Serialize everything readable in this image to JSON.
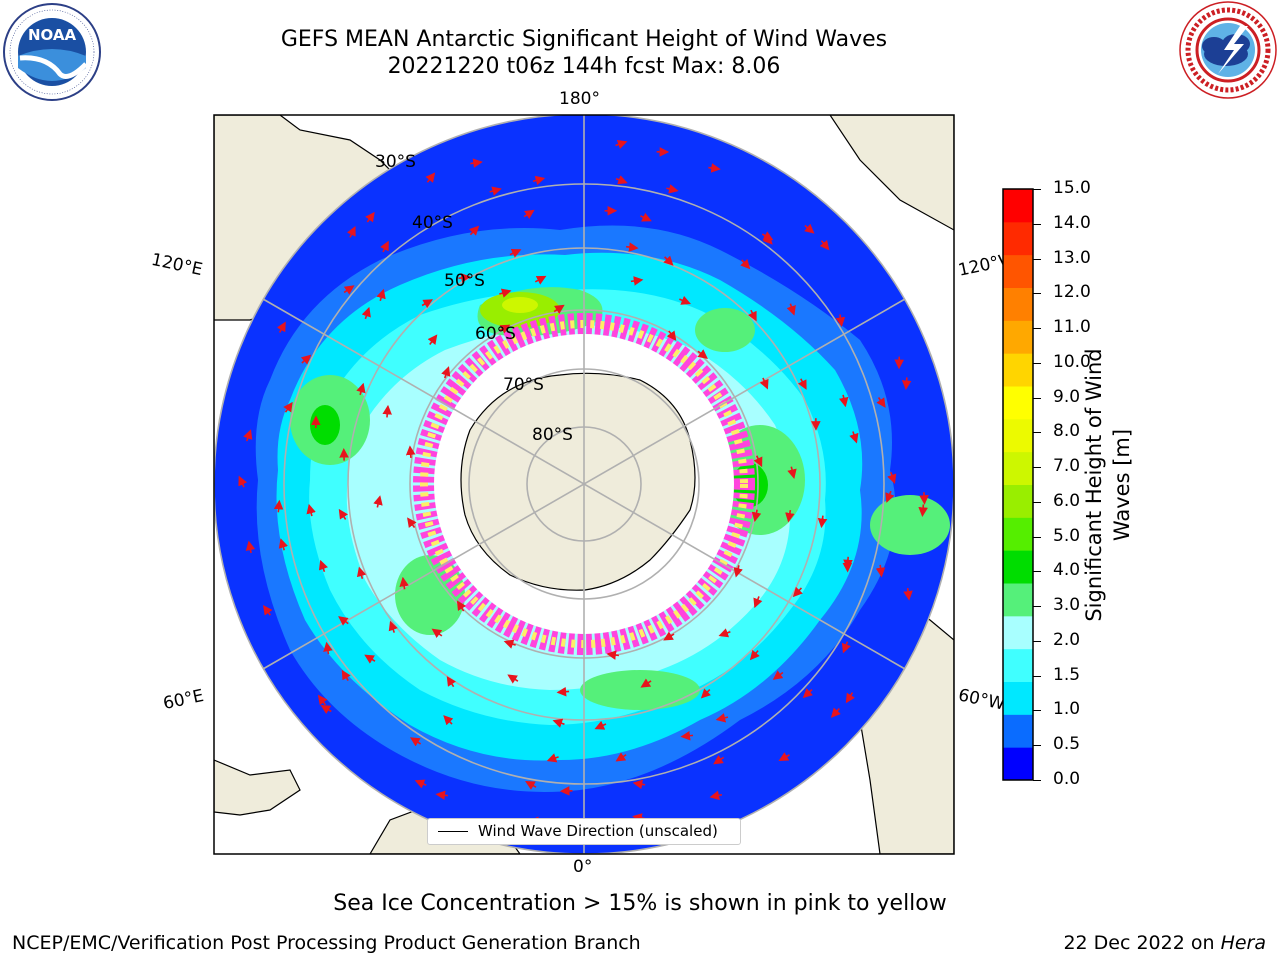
{
  "header": {
    "title_line1": "GEFS MEAN Antarctic Significant Height of Wind Waves",
    "title_line2": "20221220 t06z 144h fcst   Max: 8.06"
  },
  "logos": {
    "left": {
      "name": "noaa-logo",
      "text": "NOAA",
      "ring_text": "NATIONAL OCEANIC AND ATMOSPHERIC ADMINISTRATION · U.S. DEPARTMENT OF COMMERCE"
    },
    "right": {
      "name": "nws-logo",
      "ring_text": "NATIONAL WEATHER SERVICE"
    }
  },
  "map": {
    "longitude_labels": [
      "180°",
      "120°E",
      "120°W",
      "60°E",
      "60°W",
      "0°"
    ],
    "latitude_labels": [
      "30°S",
      "40°S",
      "50°S",
      "60°S",
      "70°S",
      "80°S"
    ],
    "legend_label": "Wind Wave Direction (unscaled)",
    "colors": {
      "land": "#efecdb",
      "ice_pink": "#ff44dd",
      "ice_yellow": "#ffee66",
      "arrow": "#e8141d"
    }
  },
  "colorbar": {
    "label": "Significant Height of Wind Waves [m]",
    "label_line1": "Significant Height of Wind",
    "label_line2": "Waves [m]",
    "ticks": [
      "15.0",
      "14.0",
      "13.0",
      "12.0",
      "11.0",
      "10.0",
      "9.0",
      "8.0",
      "7.0",
      "6.0",
      "5.0",
      "4.0",
      "3.0",
      "2.0",
      "1.5",
      "1.0",
      "0.5",
      "0.0"
    ],
    "colors_bottom_to_top": [
      "#0000ff",
      "#0a6cff",
      "#00e8ff",
      "#40ffff",
      "#a8ffff",
      "#55f07a",
      "#00dd00",
      "#55ee00",
      "#99ee00",
      "#cdf700",
      "#ecfa00",
      "#ffff00",
      "#ffd500",
      "#ffa800",
      "#ff8000",
      "#ff5500",
      "#ff2a00",
      "#ff0000"
    ]
  },
  "footer": {
    "note": "Sea Ice Concentration > 15% is shown in pink to yellow",
    "left": "NCEP/EMC/Verification Post Processing Product Generation Branch",
    "right_prefix": "22 Dec 2022 on ",
    "right_host": "Hera"
  }
}
